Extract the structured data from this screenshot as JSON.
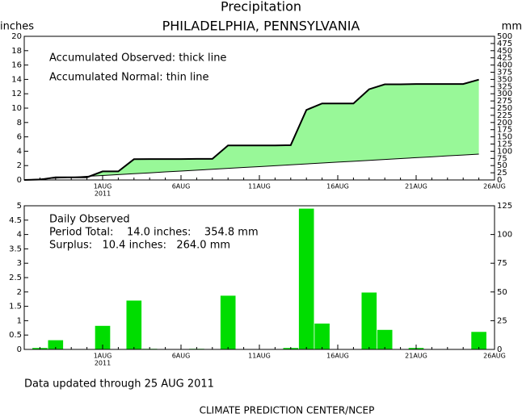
{
  "chart_data": [
    {
      "type": "line",
      "title": "Precipitation",
      "subtitle": "PHILADELPHIA, PENNSYLVANIA",
      "ylabel": "inches",
      "y2label": "mm",
      "annotations": [
        "Accumulated Observed: thick line",
        "Accumulated Normal: thin line"
      ],
      "x": [
        "2011-07-27",
        "2011-07-28",
        "2011-07-29",
        "2011-07-30",
        "2011-07-31",
        "2011-08-01",
        "2011-08-02",
        "2011-08-03",
        "2011-08-04",
        "2011-08-05",
        "2011-08-06",
        "2011-08-07",
        "2011-08-08",
        "2011-08-09",
        "2011-08-10",
        "2011-08-11",
        "2011-08-12",
        "2011-08-13",
        "2011-08-14",
        "2011-08-15",
        "2011-08-16",
        "2011-08-17",
        "2011-08-18",
        "2011-08-19",
        "2011-08-20",
        "2011-08-21",
        "2011-08-22",
        "2011-08-23",
        "2011-08-24",
        "2011-08-25"
      ],
      "series": [
        {
          "color": "#000000",
          "line_width": 2,
          "values": [
            0,
            0.05,
            0.37,
            0.37,
            0.37,
            1.19,
            1.19,
            2.89,
            2.91,
            2.91,
            2.91,
            2.93,
            2.93,
            4.8,
            4.8,
            4.8,
            4.8,
            4.85,
            9.75,
            10.65,
            10.65,
            10.65,
            12.63,
            13.31,
            13.31,
            13.36,
            13.36,
            13.36,
            13.36,
            13.97
          ]
        },
        {
          "color": "#000000",
          "line_width": 1,
          "values": [
            0,
            0.12,
            0.25,
            0.37,
            0.5,
            0.62,
            0.74,
            0.87,
            0.99,
            1.12,
            1.24,
            1.36,
            1.49,
            1.61,
            1.74,
            1.86,
            1.98,
            2.11,
            2.23,
            2.36,
            2.48,
            2.6,
            2.73,
            2.85,
            2.98,
            3.1,
            3.22,
            3.35,
            3.47,
            3.6
          ]
        }
      ],
      "fill_color": "#98f898",
      "xlim": [
        "2011-07-27",
        "2011-08-26"
      ],
      "xticks": [
        {
          "value": "2011-08-01",
          "label": "1AUG"
        },
        {
          "value": "2011-08-06",
          "label": "6AUG"
        },
        {
          "value": "2011-08-11",
          "label": "11AUG"
        },
        {
          "value": "2011-08-16",
          "label": "16AUG"
        },
        {
          "value": "2011-08-21",
          "label": "21AUG"
        },
        {
          "value": "2011-08-26",
          "label": "26AUG"
        }
      ],
      "year_label": "2011",
      "ylim": [
        0,
        20
      ],
      "yticks": [
        0,
        2,
        4,
        6,
        8,
        10,
        12,
        14,
        16,
        18,
        20
      ],
      "y2lim": [
        0,
        500
      ],
      "y2ticks": [
        0,
        25,
        50,
        75,
        100,
        125,
        150,
        175,
        200,
        225,
        250,
        275,
        300,
        325,
        350,
        375,
        400,
        425,
        450,
        475,
        500
      ]
    },
    {
      "type": "bar",
      "annotations": [
        "Daily Observed",
        "Period Total:    14.0 inches:    354.8 mm",
        "Surplus:   10.4 inches:   264.0 mm"
      ],
      "x": [
        "2011-07-27",
        "2011-07-28",
        "2011-07-29",
        "2011-07-30",
        "2011-07-31",
        "2011-08-01",
        "2011-08-02",
        "2011-08-03",
        "2011-08-04",
        "2011-08-05",
        "2011-08-06",
        "2011-08-07",
        "2011-08-08",
        "2011-08-09",
        "2011-08-10",
        "2011-08-11",
        "2011-08-12",
        "2011-08-13",
        "2011-08-14",
        "2011-08-15",
        "2011-08-16",
        "2011-08-17",
        "2011-08-18",
        "2011-08-19",
        "2011-08-20",
        "2011-08-21",
        "2011-08-22",
        "2011-08-23",
        "2011-08-24",
        "2011-08-25"
      ],
      "values": [
        0,
        0.05,
        0.32,
        0,
        0,
        0.82,
        0,
        1.7,
        0.02,
        0,
        0,
        0.02,
        0,
        1.87,
        0,
        0,
        0,
        0.05,
        4.9,
        0.9,
        0,
        0,
        1.98,
        0.68,
        0,
        0.05,
        0,
        0,
        0,
        0.61
      ],
      "color": "#00dd00",
      "xlim": [
        "2011-07-27",
        "2011-08-26"
      ],
      "xticks": [
        {
          "value": "2011-08-01",
          "label": "1AUG"
        },
        {
          "value": "2011-08-06",
          "label": "6AUG"
        },
        {
          "value": "2011-08-11",
          "label": "11AUG"
        },
        {
          "value": "2011-08-16",
          "label": "16AUG"
        },
        {
          "value": "2011-08-21",
          "label": "21AUG"
        },
        {
          "value": "2011-08-26",
          "label": "26AUG"
        }
      ],
      "year_label": "2011",
      "ylim": [
        0,
        5
      ],
      "yticks": [
        0,
        0.5,
        1,
        1.5,
        2,
        2.5,
        3,
        3.5,
        4,
        4.5,
        5
      ],
      "y2lim": [
        0,
        125
      ],
      "y2ticks": [
        0,
        25,
        50,
        75,
        100,
        125
      ]
    }
  ],
  "footer": [
    "Data updated through 25 AUG 2011",
    "CLIMATE PREDICTION CENTER/NCEP"
  ]
}
